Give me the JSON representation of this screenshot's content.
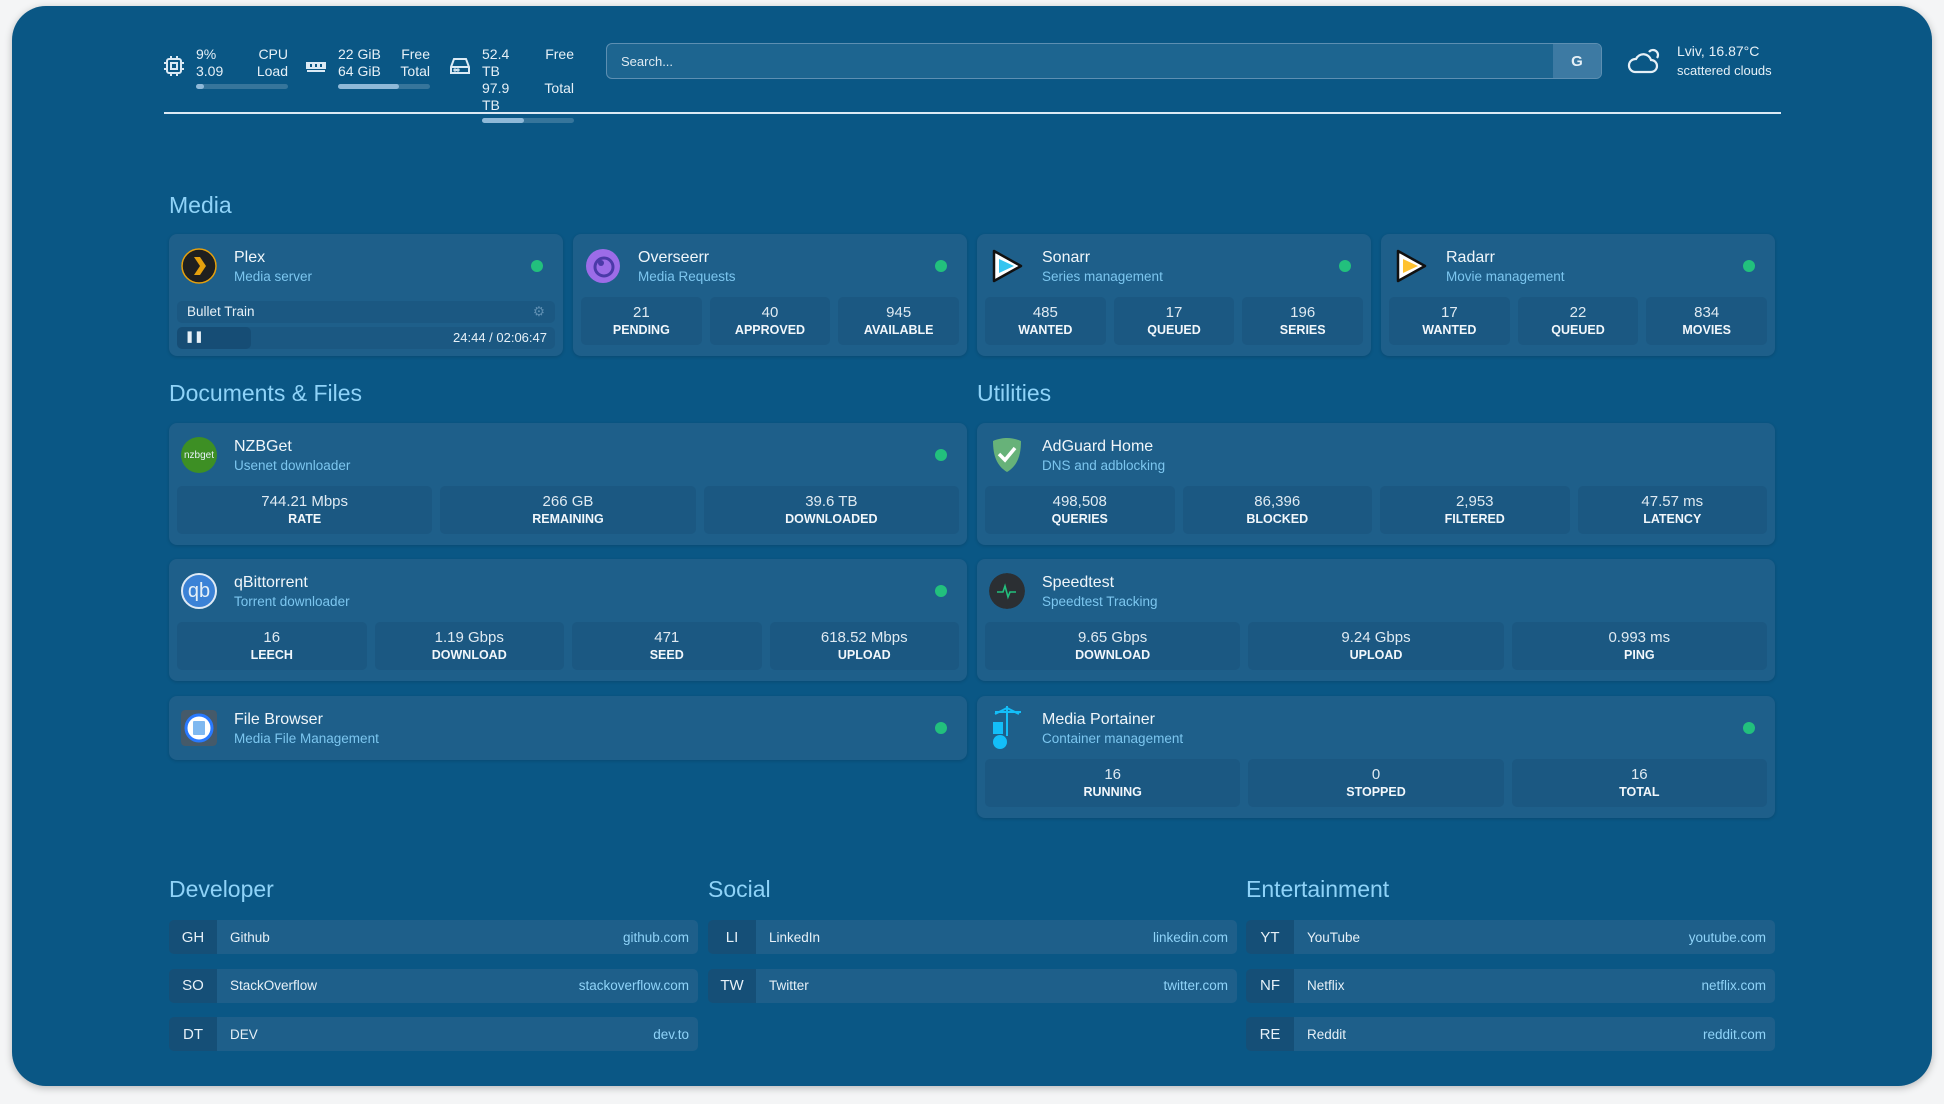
{
  "resources": {
    "cpu": {
      "icon": "cpu-icon",
      "value1": "9%",
      "value2": "3.09",
      "label1": "CPU",
      "label2": "Load",
      "usage_percent": 9
    },
    "memory": {
      "icon": "memory-icon",
      "value1": "22 GiB",
      "value2": "64 GiB",
      "label1": "Free",
      "label2": "Total",
      "usage_percent": 66
    },
    "disk": {
      "icon": "disk-icon",
      "value1": "52.4 TB",
      "value2": "97.9 TB",
      "label1": "Free",
      "label2": "Total",
      "usage_percent": 46
    }
  },
  "search": {
    "placeholder": "Search...",
    "provider_label": "G"
  },
  "weather": {
    "icon": "cloud-icon",
    "location_temp": "Lviv, 16.87°C",
    "condition": "scattered clouds"
  },
  "sections": {
    "media": "Media",
    "documents": "Documents & Files",
    "utilities": "Utilities",
    "developer": "Developer",
    "social": "Social",
    "entertainment": "Entertainment"
  },
  "status_color": "#22c07d",
  "media": [
    {
      "name": "Plex",
      "desc": "Media server",
      "online": true,
      "now_playing": {
        "title": "Bullet Train",
        "time": "24:44 / 02:06:47",
        "progress_percent": 19.5
      }
    },
    {
      "name": "Overseerr",
      "desc": "Media Requests",
      "online": true,
      "stats": [
        {
          "v": "21",
          "l": "PENDING"
        },
        {
          "v": "40",
          "l": "APPROVED"
        },
        {
          "v": "945",
          "l": "AVAILABLE"
        }
      ]
    },
    {
      "name": "Sonarr",
      "desc": "Series management",
      "online": true,
      "stats": [
        {
          "v": "485",
          "l": "WANTED"
        },
        {
          "v": "17",
          "l": "QUEUED"
        },
        {
          "v": "196",
          "l": "SERIES"
        }
      ]
    },
    {
      "name": "Radarr",
      "desc": "Movie management",
      "online": true,
      "stats": [
        {
          "v": "17",
          "l": "WANTED"
        },
        {
          "v": "22",
          "l": "QUEUED"
        },
        {
          "v": "834",
          "l": "MOVIES"
        }
      ]
    }
  ],
  "documents": [
    {
      "name": "NZBGet",
      "desc": "Usenet downloader",
      "logo_text": "nzbget",
      "online": true,
      "stats": [
        {
          "v": "744.21 Mbps",
          "l": "RATE"
        },
        {
          "v": "266 GB",
          "l": "REMAINING"
        },
        {
          "v": "39.6 TB",
          "l": "DOWNLOADED"
        }
      ]
    },
    {
      "name": "qBittorrent",
      "desc": "Torrent downloader",
      "logo_text": "qb",
      "online": true,
      "stats": [
        {
          "v": "16",
          "l": "LEECH"
        },
        {
          "v": "1.19 Gbps",
          "l": "DOWNLOAD"
        },
        {
          "v": "471",
          "l": "SEED"
        },
        {
          "v": "618.52 Mbps",
          "l": "UPLOAD"
        }
      ]
    },
    {
      "name": "File Browser",
      "desc": "Media File Management",
      "online": true
    }
  ],
  "utilities": [
    {
      "name": "AdGuard Home",
      "desc": "DNS and adblocking",
      "stats": [
        {
          "v": "498,508",
          "l": "QUERIES"
        },
        {
          "v": "86,396",
          "l": "BLOCKED"
        },
        {
          "v": "2,953",
          "l": "FILTERED"
        },
        {
          "v": "47.57 ms",
          "l": "LATENCY"
        }
      ]
    },
    {
      "name": "Speedtest",
      "desc": "Speedtest Tracking",
      "stats": [
        {
          "v": "9.65 Gbps",
          "l": "DOWNLOAD"
        },
        {
          "v": "9.24 Gbps",
          "l": "UPLOAD"
        },
        {
          "v": "0.993 ms",
          "l": "PING"
        }
      ]
    },
    {
      "name": "Media Portainer",
      "desc": "Container management",
      "online": true,
      "stats": [
        {
          "v": "16",
          "l": "RUNNING"
        },
        {
          "v": "0",
          "l": "STOPPED"
        },
        {
          "v": "16",
          "l": "TOTAL"
        }
      ]
    }
  ],
  "bookmarks": {
    "developer": [
      {
        "abbr": "GH",
        "name": "Github",
        "url": "github.com"
      },
      {
        "abbr": "SO",
        "name": "StackOverflow",
        "url": "stackoverflow.com"
      },
      {
        "abbr": "DT",
        "name": "DEV",
        "url": "dev.to"
      }
    ],
    "social": [
      {
        "abbr": "LI",
        "name": "LinkedIn",
        "url": "linkedin.com"
      },
      {
        "abbr": "TW",
        "name": "Twitter",
        "url": "twitter.com"
      }
    ],
    "entertainment": [
      {
        "abbr": "YT",
        "name": "YouTube",
        "url": "youtube.com"
      },
      {
        "abbr": "NF",
        "name": "Netflix",
        "url": "netflix.com"
      },
      {
        "abbr": "RE",
        "name": "Reddit",
        "url": "reddit.com"
      }
    ]
  }
}
